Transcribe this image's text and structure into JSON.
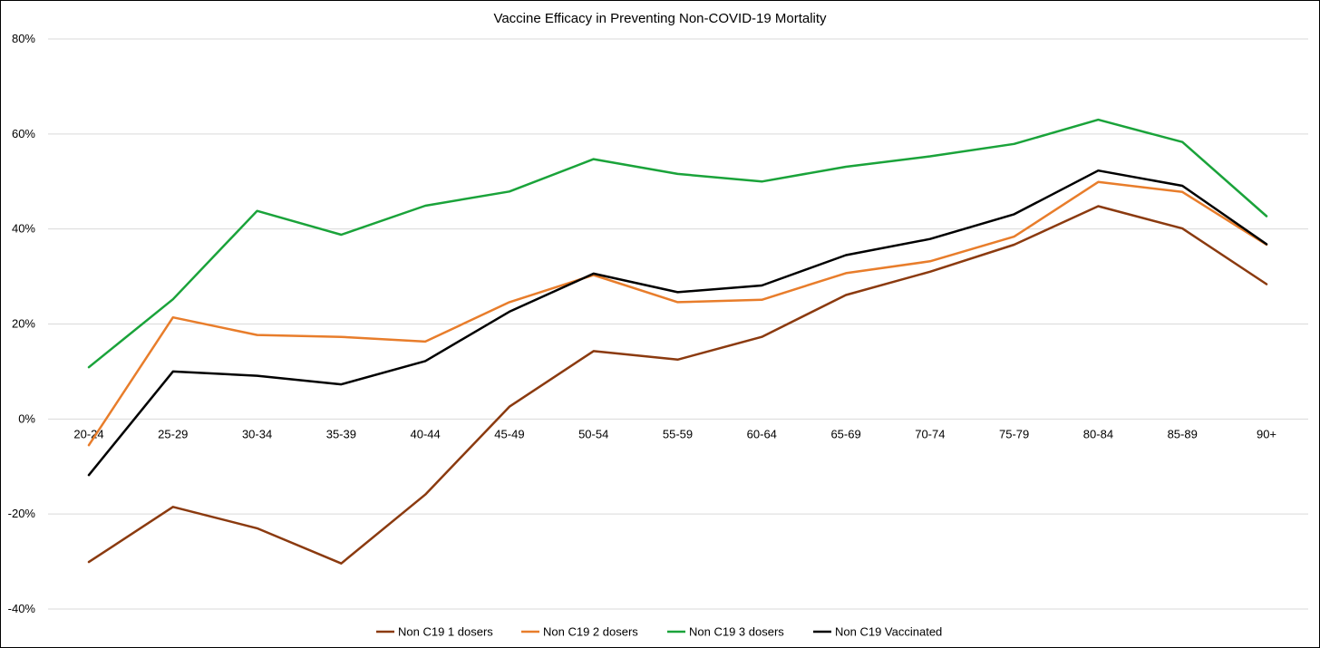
{
  "chart_data": {
    "type": "line",
    "title": "Vaccine Efficacy in Preventing Non-COVID-19 Mortality",
    "xlabel": "",
    "ylabel": "",
    "ylim": [
      -40,
      80
    ],
    "yticks": [
      -40,
      -20,
      0,
      20,
      40,
      60,
      80
    ],
    "ytick_labels": [
      "-40%",
      "-20%",
      "0%",
      "20%",
      "40%",
      "60%",
      "80%"
    ],
    "grid": true,
    "legend_position": "bottom",
    "categories": [
      "20-24",
      "25-29",
      "30-34",
      "35-39",
      "40-44",
      "45-49",
      "50-54",
      "55-59",
      "60-64",
      "65-69",
      "70-74",
      "75-79",
      "80-84",
      "85-89",
      "90+"
    ],
    "series": [
      {
        "name": "Non C19 1 dosers",
        "color": "#8B3A0F",
        "values": [
          -30.1,
          -18.5,
          -23.0,
          -30.4,
          -15.9,
          2.6,
          14.3,
          12.5,
          17.3,
          26.1,
          31.0,
          36.7,
          44.8,
          40.1,
          28.4
        ]
      },
      {
        "name": "Non C19 2 dosers",
        "color": "#E87D2B",
        "values": [
          -5.5,
          21.4,
          17.7,
          17.3,
          16.3,
          24.6,
          30.3,
          24.6,
          25.1,
          30.7,
          33.2,
          38.4,
          49.9,
          47.8,
          36.7
        ]
      },
      {
        "name": "Non C19 3 dosers",
        "color": "#1AA33A",
        "values": [
          10.9,
          25.2,
          43.8,
          38.8,
          44.9,
          47.9,
          54.7,
          51.6,
          50.0,
          53.1,
          55.3,
          57.9,
          63.0,
          58.3,
          42.7
        ]
      },
      {
        "name": "Non C19 Vaccinated",
        "color": "#000000",
        "values": [
          -11.8,
          10.0,
          9.1,
          7.3,
          12.2,
          22.6,
          30.6,
          26.7,
          28.1,
          34.5,
          37.9,
          43.1,
          52.3,
          49.1,
          36.8
        ]
      }
    ]
  }
}
